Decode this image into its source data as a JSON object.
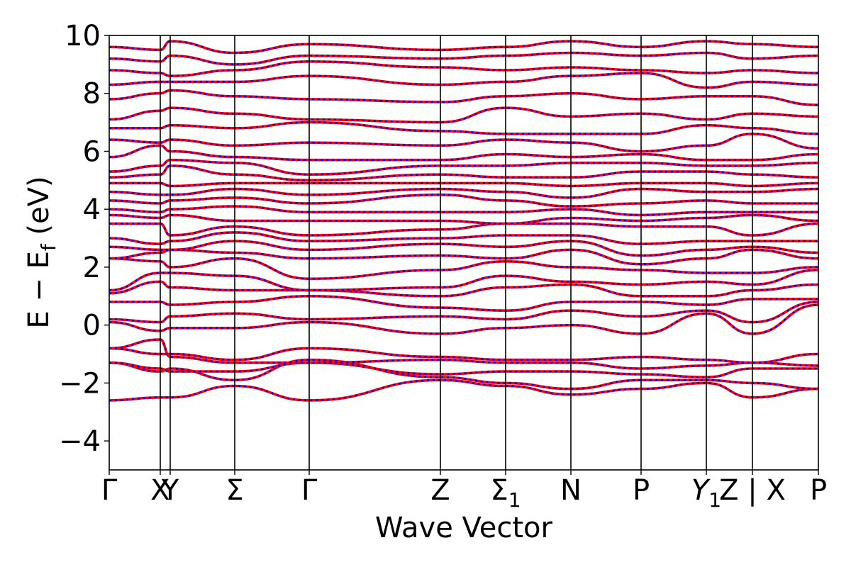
{
  "chart_data": {
    "type": "line",
    "xlabel": "Wave Vector",
    "ylabel": "E − E",
    "ylabel_sub": "f",
    "ylabel_unit": " (eV)",
    "ylim": [
      -5,
      10
    ],
    "yticks": [
      -4,
      -2,
      0,
      2,
      4,
      6,
      8,
      10
    ],
    "xlim": [
      0,
      1
    ],
    "kpoints": [
      {
        "x": 0.0,
        "label": "Γ"
      },
      {
        "x": 0.072,
        "label": "X"
      },
      {
        "x": 0.086,
        "label": "Y"
      },
      {
        "x": 0.177,
        "label": "Σ"
      },
      {
        "x": 0.282,
        "label": "Γ"
      },
      {
        "x": 0.467,
        "label": "Z"
      },
      {
        "x": 0.559,
        "label": "Σ",
        "sub": "1"
      },
      {
        "x": 0.651,
        "label": "N"
      },
      {
        "x": 0.75,
        "label": "P"
      },
      {
        "x": 0.842,
        "label": "Y",
        "sub": "1",
        "italic": true
      },
      {
        "x": 0.907,
        "label": "Z | X"
      },
      {
        "x": 1.0,
        "label": "P"
      }
    ],
    "series_styles": [
      {
        "color": "#ff0000",
        "style": "solid"
      },
      {
        "color": "#0000ff",
        "style": "dotted"
      }
    ],
    "bands": [
      [
        -2.6,
        -2.5,
        -2.5,
        -2.1,
        -2.6,
        -1.9,
        -2.1,
        -2.4,
        -2.2,
        -2.0,
        -2.5,
        -2.2
      ],
      [
        -1.3,
        -1.6,
        -1.5,
        -1.9,
        -1.2,
        -1.8,
        -2.0,
        -2.2,
        -1.9,
        -1.9,
        -2.0,
        -2.2
      ],
      [
        -1.3,
        -1.5,
        -1.6,
        -1.6,
        -1.3,
        -1.7,
        -1.6,
        -1.6,
        -1.7,
        -1.8,
        -1.5,
        -1.5
      ],
      [
        -0.8,
        -0.5,
        -1.1,
        -1.3,
        -1.3,
        -1.2,
        -1.3,
        -1.3,
        -1.5,
        -1.4,
        -1.3,
        -1.4
      ],
      [
        -0.8,
        -1.0,
        -1.0,
        -1.2,
        -0.8,
        -1.1,
        -1.2,
        -1.2,
        -1.1,
        -1.2,
        -1.3,
        -1.0
      ],
      [
        0.1,
        -0.2,
        -0.1,
        -0.1,
        0.1,
        -0.3,
        -0.1,
        0.0,
        -0.3,
        0.4,
        -0.3,
        0.7
      ],
      [
        0.2,
        0.1,
        0.3,
        0.4,
        0.2,
        0.3,
        0.2,
        0.5,
        0.3,
        0.5,
        0.1,
        0.8
      ],
      [
        0.8,
        0.8,
        0.7,
        0.8,
        1.0,
        0.6,
        0.5,
        0.8,
        0.8,
        0.7,
        0.9,
        0.9
      ],
      [
        1.1,
        1.5,
        1.3,
        1.2,
        1.2,
        1.0,
        1.3,
        1.4,
        1.0,
        1.0,
        1.2,
        1.4
      ],
      [
        1.2,
        1.8,
        1.8,
        1.7,
        1.2,
        1.3,
        1.7,
        1.5,
        1.4,
        1.5,
        1.4,
        1.9
      ],
      [
        2.3,
        2.2,
        2.0,
        2.3,
        1.6,
        1.9,
        2.2,
        2.0,
        1.9,
        1.8,
        1.8,
        2.0
      ],
      [
        2.3,
        2.5,
        2.6,
        2.5,
        2.3,
        2.4,
        2.3,
        2.6,
        2.1,
        2.3,
        2.6,
        2.3
      ],
      [
        2.7,
        2.6,
        2.6,
        2.9,
        2.6,
        2.8,
        2.7,
        2.9,
        2.4,
        2.6,
        2.7,
        2.5
      ],
      [
        3.0,
        2.8,
        2.9,
        3.2,
        2.9,
        3.0,
        3.1,
        3.1,
        2.8,
        2.9,
        2.9,
        2.9
      ],
      [
        3.5,
        3.5,
        3.1,
        3.4,
        3.1,
        3.3,
        3.5,
        3.5,
        3.4,
        3.4,
        3.1,
        3.5
      ],
      [
        3.8,
        3.7,
        3.8,
        3.6,
        3.6,
        3.6,
        3.5,
        3.7,
        3.6,
        3.7,
        3.8,
        3.6
      ],
      [
        4.0,
        3.9,
        4.0,
        4.1,
        3.9,
        3.9,
        3.9,
        4.0,
        3.8,
        3.9,
        3.9,
        3.9
      ],
      [
        4.3,
        4.2,
        4.3,
        4.4,
        4.2,
        4.5,
        4.3,
        4.1,
        4.2,
        4.3,
        4.2,
        4.2
      ],
      [
        4.6,
        4.5,
        4.5,
        4.7,
        4.5,
        4.7,
        4.6,
        4.4,
        4.7,
        4.6,
        4.6,
        4.7
      ],
      [
        4.9,
        4.9,
        4.8,
        4.9,
        4.9,
        4.9,
        4.9,
        4.8,
        4.9,
        4.9,
        4.8,
        4.9
      ],
      [
        5.1,
        5.2,
        5.5,
        5.2,
        5.0,
        5.2,
        5.1,
        5.1,
        5.3,
        5.3,
        5.2,
        5.1
      ],
      [
        5.3,
        5.5,
        5.7,
        5.6,
        5.2,
        5.5,
        5.5,
        5.6,
        5.6,
        5.5,
        5.5,
        5.6
      ],
      [
        5.8,
        6.2,
        6.0,
        5.8,
        5.7,
        5.7,
        5.9,
        5.8,
        5.9,
        5.7,
        5.7,
        5.9
      ],
      [
        6.4,
        6.3,
        6.4,
        6.2,
        6.3,
        6.2,
        6.4,
        6.3,
        6.0,
        6.2,
        6.6,
        6.1
      ],
      [
        6.8,
        6.8,
        6.9,
        6.8,
        7.0,
        6.7,
        6.6,
        6.6,
        6.6,
        6.9,
        6.8,
        6.6
      ],
      [
        7.1,
        7.4,
        7.5,
        7.3,
        7.1,
        7.0,
        7.5,
        7.2,
        7.3,
        7.1,
        7.3,
        7.2
      ],
      [
        7.8,
        8.0,
        8.1,
        7.9,
        7.8,
        7.7,
        7.9,
        8.0,
        7.8,
        7.9,
        7.9,
        7.6
      ],
      [
        8.3,
        8.4,
        8.4,
        8.4,
        8.6,
        8.3,
        8.4,
        8.6,
        8.7,
        8.2,
        8.4,
        8.3
      ],
      [
        8.8,
        8.7,
        8.6,
        8.8,
        9.1,
        8.9,
        8.8,
        8.9,
        8.8,
        8.7,
        8.8,
        8.7
      ],
      [
        9.2,
        9.1,
        9.3,
        9.0,
        9.3,
        9.2,
        9.3,
        9.4,
        9.3,
        9.4,
        9.2,
        9.3
      ],
      [
        9.6,
        9.5,
        9.8,
        9.4,
        9.7,
        9.5,
        9.6,
        9.8,
        9.6,
        9.8,
        9.7,
        9.6
      ]
    ]
  }
}
